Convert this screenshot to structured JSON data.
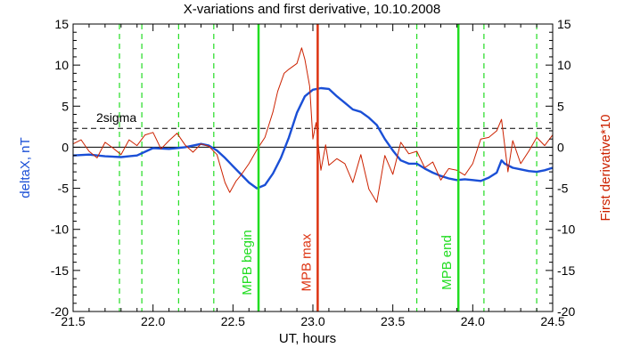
{
  "chart_data": {
    "type": "line",
    "title": "X-variations and first derivative, 10.10.2008",
    "xlabel": "UT, hours",
    "ylabel_left": "deltaX, nT",
    "ylabel_right": "First derivative*10",
    "xlim": [
      21.5,
      24.5
    ],
    "ylim": [
      -20,
      15
    ],
    "x_ticks": [
      "21.5",
      "22.0",
      "22.5",
      "23.0",
      "23.5",
      "24.0",
      "24.5"
    ],
    "y_ticks": [
      "15",
      "10",
      "5",
      "0",
      "-5",
      "-10",
      "-15",
      "-20"
    ],
    "colors": {
      "deltaX": "#1a4fd6",
      "derivative": "#cc2200",
      "mpb": "#22dd22",
      "mpb_max": "#dd3311",
      "axis": "#000000"
    },
    "threshold": {
      "label": "2sigma",
      "value": 2.3
    },
    "zero_line": 0,
    "vertical_markers": [
      {
        "x": 22.66,
        "label": "MPB begin",
        "color": "#22dd22"
      },
      {
        "x": 23.03,
        "label": "MPB max",
        "color": "#dd3311"
      },
      {
        "x": 23.91,
        "label": "MPB end",
        "color": "#22dd22"
      }
    ],
    "dashed_verticals": [
      21.79,
      21.93,
      22.16,
      22.38,
      23.65,
      24.07,
      24.4
    ],
    "series": [
      {
        "name": "deltaX, nT",
        "color": "#1a4fd6",
        "x": [
          21.5,
          21.6,
          21.7,
          21.8,
          21.85,
          21.9,
          22.0,
          22.1,
          22.2,
          22.3,
          22.35,
          22.4,
          22.45,
          22.5,
          22.55,
          22.6,
          22.65,
          22.7,
          22.75,
          22.8,
          22.85,
          22.9,
          22.95,
          23.0,
          23.05,
          23.1,
          23.15,
          23.2,
          23.25,
          23.3,
          23.35,
          23.4,
          23.45,
          23.5,
          23.55,
          23.6,
          23.65,
          23.7,
          23.75,
          23.8,
          23.85,
          23.9,
          23.95,
          24.0,
          24.05,
          24.1,
          24.15,
          24.18,
          24.2,
          24.25,
          24.3,
          24.35,
          24.4,
          24.45,
          24.5
        ],
        "y": [
          -1.0,
          -0.9,
          -1.1,
          -1.2,
          -1.1,
          -1.0,
          -0.1,
          -0.2,
          0.0,
          0.4,
          0.2,
          -0.4,
          -1.3,
          -2.3,
          -3.3,
          -4.3,
          -5.0,
          -4.6,
          -3.2,
          -1.3,
          1.2,
          4.2,
          6.2,
          7.0,
          7.2,
          7.1,
          6.2,
          5.4,
          4.6,
          4.3,
          3.6,
          2.7,
          1.0,
          -0.4,
          -1.6,
          -2.0,
          -2.0,
          -2.6,
          -3.1,
          -3.5,
          -3.8,
          -4.0,
          -3.9,
          -4.0,
          -4.1,
          -3.7,
          -3.1,
          -1.6,
          -2.0,
          -2.5,
          -2.7,
          -2.9,
          -3.0,
          -2.8,
          -2.5
        ]
      },
      {
        "name": "First derivative*10",
        "color": "#cc2200",
        "x": [
          21.5,
          21.55,
          21.6,
          21.65,
          21.7,
          21.75,
          21.8,
          21.85,
          21.9,
          21.95,
          22.0,
          22.05,
          22.1,
          22.15,
          22.2,
          22.25,
          22.3,
          22.35,
          22.4,
          22.45,
          22.48,
          22.52,
          22.55,
          22.6,
          22.65,
          22.7,
          22.75,
          22.78,
          22.82,
          22.85,
          22.9,
          22.93,
          22.95,
          22.98,
          23.0,
          23.02,
          23.05,
          23.08,
          23.1,
          23.15,
          23.2,
          23.25,
          23.3,
          23.35,
          23.4,
          23.45,
          23.5,
          23.55,
          23.6,
          23.65,
          23.7,
          23.75,
          23.8,
          23.85,
          23.9,
          23.95,
          24.0,
          24.05,
          24.1,
          24.15,
          24.18,
          24.22,
          24.25,
          24.3,
          24.35,
          24.4,
          24.45,
          24.5
        ],
        "y": [
          0.4,
          0.9,
          -0.5,
          -1.3,
          0.6,
          -0.1,
          -0.9,
          0.9,
          0.2,
          1.5,
          1.8,
          -0.2,
          0.8,
          1.7,
          0.3,
          -0.6,
          0.4,
          0.1,
          -0.9,
          -4.3,
          -5.5,
          -4.1,
          -3.4,
          -2.0,
          -0.3,
          1.2,
          4.3,
          6.8,
          9.0,
          9.5,
          10.2,
          12.1,
          10.7,
          7.4,
          1.0,
          3.0,
          -2.8,
          0.3,
          -2.2,
          -1.4,
          -2.0,
          -4.3,
          -0.9,
          -5.1,
          -6.7,
          -1.0,
          -3.3,
          0.6,
          -0.8,
          -0.5,
          -2.5,
          -1.8,
          -4.0,
          -2.6,
          -2.8,
          -3.4,
          -2.0,
          1.0,
          1.2,
          2.0,
          3.4,
          -3.0,
          0.8,
          -2.0,
          -0.5,
          1.2,
          0.2,
          1.5
        ]
      }
    ]
  }
}
